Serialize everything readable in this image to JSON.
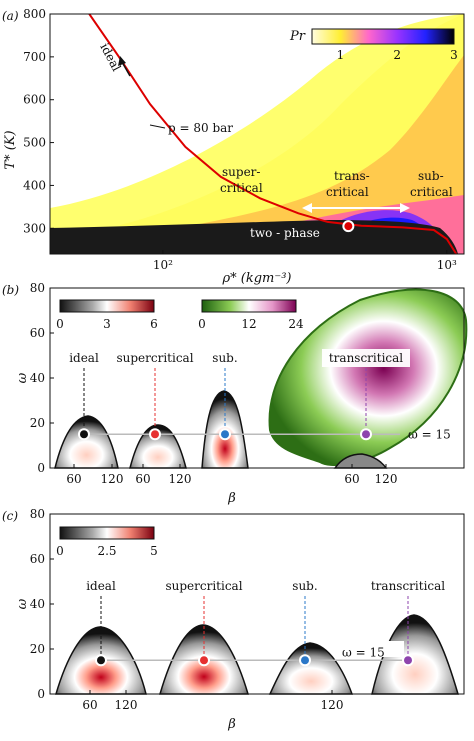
{
  "panels": {
    "a": {
      "label": "(a)"
    },
    "b": {
      "label": "(b)"
    },
    "c": {
      "label": "(c)"
    }
  },
  "chart_data": [
    {
      "type": "heatmap",
      "panel": "(a)",
      "xlabel": "ρ* (kgm⁻³)",
      "ylabel": "T* (K)",
      "xscale": "log",
      "xlim": [
        40,
        1150
      ],
      "ylim": [
        240,
        800
      ],
      "xticks": [
        {
          "v": 100,
          "label": "10²"
        },
        {
          "v": 1000,
          "label": "10³"
        }
      ],
      "yticks": [
        300,
        400,
        500,
        600,
        700,
        800
      ],
      "colorbar": {
        "title": "Pr",
        "range": [
          0.5,
          3
        ],
        "ticks": [
          1,
          2,
          3
        ]
      },
      "isobar": {
        "label": "p = 80 bar",
        "points": [
          [
            55,
            800
          ],
          [
            70,
            700
          ],
          [
            90,
            590
          ],
          [
            120,
            490
          ],
          [
            160,
            420
          ],
          [
            220,
            370
          ],
          [
            300,
            335
          ],
          [
            380,
            315
          ],
          [
            500,
            306
          ],
          [
            700,
            302
          ],
          [
            900,
            296
          ],
          [
            1000,
            275
          ],
          [
            1080,
            240
          ]
        ]
      },
      "pseudo_critical_point": {
        "rho": 450,
        "T": 305
      },
      "annotations": {
        "ideal": "ideal",
        "supercritical_1": "super-",
        "supercritical_2": "critical",
        "transcritical_1": "trans-",
        "transcritical_2": "critical",
        "subcritical_1": "sub-",
        "subcritical_2": "critical",
        "two_phase": "two - phase"
      }
    },
    {
      "type": "contour",
      "panel": "(b)",
      "xlabel": "β",
      "ylabel": "ω",
      "ylim": [
        0,
        80
      ],
      "yticks": [
        0,
        20,
        40,
        60,
        80
      ],
      "xtick_labels": [
        "60",
        "120",
        "60",
        "120",
        "60",
        "120"
      ],
      "reference_line": {
        "label": "ω = 15",
        "value": 15
      },
      "colorbars": [
        {
          "ticks": [
            0,
            3,
            6
          ],
          "range": [
            0,
            6
          ]
        },
        {
          "ticks": [
            0,
            12,
            24
          ],
          "range": [
            0,
            24
          ]
        }
      ],
      "regimes": [
        {
          "label": "ideal",
          "marker_beta": 70,
          "marker_omega": 15,
          "peak_omega": 22
        },
        {
          "label": "supercritical",
          "marker_beta": 70,
          "marker_omega": 15,
          "peak_omega": 20
        },
        {
          "label": "sub.",
          "marker_beta": 70,
          "marker_omega": 15,
          "peak_omega": 34
        },
        {
          "label": "transcritical",
          "marker_beta": 70,
          "marker_omega": 15,
          "peak_omega": 72
        }
      ]
    },
    {
      "type": "contour",
      "panel": "(c)",
      "xlabel": "β",
      "ylabel": "ω",
      "ylim": [
        0,
        80
      ],
      "yticks": [
        0,
        20,
        40,
        60,
        80
      ],
      "xtick_labels": [
        "60",
        "120",
        "120"
      ],
      "reference_line": {
        "label": "ω = 15",
        "value": 15
      },
      "colorbars": [
        {
          "ticks": [
            0,
            2.5,
            5
          ],
          "range": [
            0,
            5
          ]
        }
      ],
      "regimes": [
        {
          "label": "ideal",
          "marker_omega": 15,
          "peak_omega": 29
        },
        {
          "label": "supercritical",
          "marker_omega": 15,
          "peak_omega": 30
        },
        {
          "label": "sub.",
          "marker_omega": 15,
          "peak_omega": 22
        },
        {
          "label": "transcritical",
          "marker_omega": 15,
          "peak_omega": 34
        }
      ]
    }
  ]
}
